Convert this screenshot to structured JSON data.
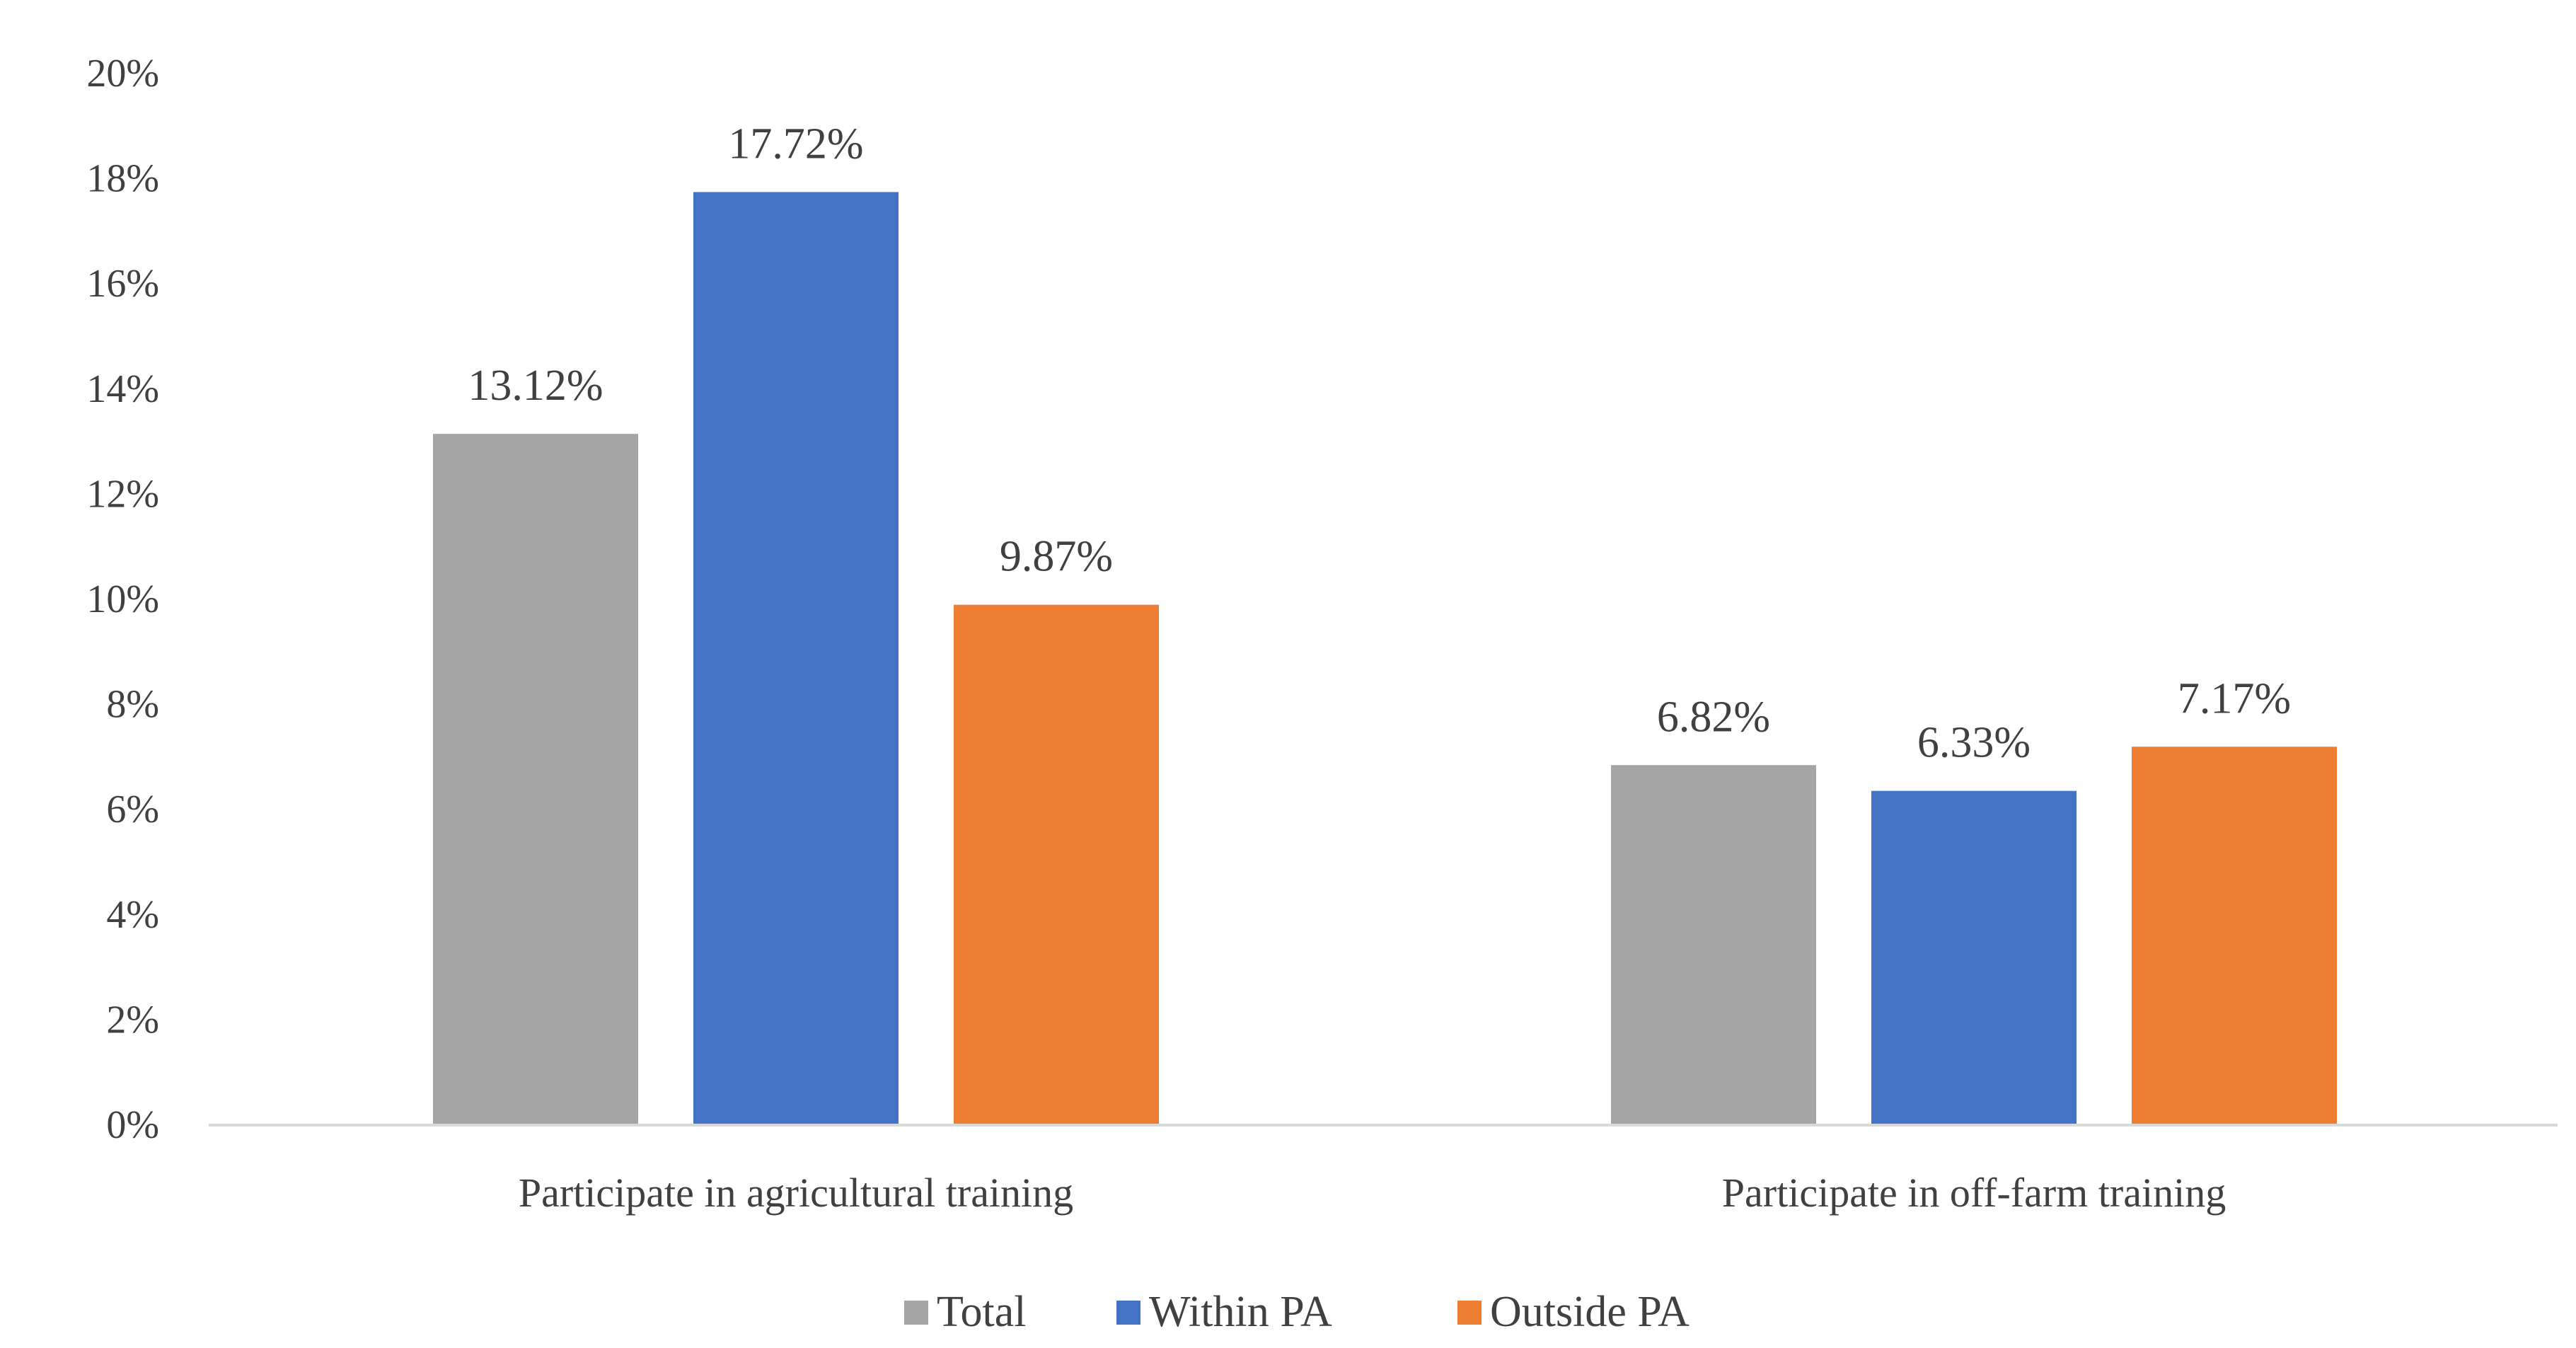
{
  "chart_data": {
    "type": "bar",
    "categories": [
      "Participate in agricultural training",
      "Participate in off-farm training"
    ],
    "series": [
      {
        "name": "Total",
        "values": [
          13.12,
          6.82
        ],
        "labels": [
          "13.12%",
          "6.82%"
        ],
        "color": "#a5a5a5"
      },
      {
        "name": "Within PA",
        "values": [
          17.72,
          6.33
        ],
        "labels": [
          "17.72%",
          "6.33%"
        ],
        "color": "#4472c4"
      },
      {
        "name": "Outside PA",
        "values": [
          9.87,
          7.17
        ],
        "labels": [
          "9.87%",
          "7.17%"
        ],
        "color": "#ed7d31"
      }
    ],
    "ylim": [
      0,
      20
    ],
    "yticks": [
      "0%",
      "2%",
      "4%",
      "6%",
      "8%",
      "10%",
      "12%",
      "14%",
      "16%",
      "18%",
      "20%"
    ],
    "ytick_values": [
      0,
      2,
      4,
      6,
      8,
      10,
      12,
      14,
      16,
      18,
      20
    ],
    "title": "",
    "xlabel": "",
    "ylabel": "",
    "grid": false,
    "legend_position": "bottom"
  }
}
